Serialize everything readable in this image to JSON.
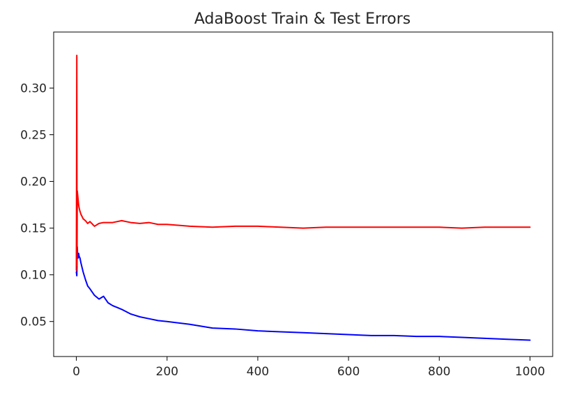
{
  "chart_data": {
    "type": "line",
    "title": "AdaBoost Train & Test Errors",
    "xlabel": "",
    "ylabel": "",
    "xlim": [
      -50,
      1050
    ],
    "ylim": [
      0.0125,
      0.36
    ],
    "x_ticks": [
      0,
      200,
      400,
      600,
      800,
      1000
    ],
    "x_tick_labels": [
      "0",
      "200",
      "400",
      "600",
      "800",
      "1000"
    ],
    "y_ticks": [
      0.05,
      0.1,
      0.15,
      0.2,
      0.25,
      0.3
    ],
    "y_tick_labels": [
      "0.05",
      "0.10",
      "0.15",
      "0.20",
      "0.25",
      "0.30"
    ],
    "grid": false,
    "legend": "none",
    "series": [
      {
        "color": "#0000ff",
        "x": [
          0,
          1,
          2,
          3,
          4,
          5,
          6,
          8,
          10,
          15,
          20,
          25,
          30,
          40,
          50,
          60,
          70,
          80,
          90,
          100,
          120,
          140,
          160,
          180,
          200,
          250,
          300,
          350,
          400,
          450,
          500,
          550,
          600,
          650,
          700,
          750,
          800,
          850,
          900,
          950,
          1000
        ],
        "y": [
          0.103,
          0.099,
          0.13,
          0.12,
          0.118,
          0.123,
          0.12,
          0.118,
          0.113,
          0.103,
          0.095,
          0.088,
          0.085,
          0.078,
          0.074,
          0.077,
          0.07,
          0.067,
          0.065,
          0.063,
          0.058,
          0.055,
          0.053,
          0.051,
          0.05,
          0.047,
          0.043,
          0.042,
          0.04,
          0.039,
          0.038,
          0.037,
          0.036,
          0.035,
          0.035,
          0.034,
          0.034,
          0.033,
          0.032,
          0.031,
          0.03
        ]
      },
      {
        "color": "#ff0000",
        "x": [
          0,
          1,
          1.5,
          2,
          3,
          4,
          5,
          6,
          8,
          10,
          15,
          20,
          25,
          30,
          40,
          50,
          60,
          80,
          100,
          120,
          140,
          160,
          180,
          200,
          250,
          300,
          350,
          400,
          450,
          500,
          550,
          600,
          650,
          700,
          750,
          800,
          850,
          900,
          950,
          1000
        ],
        "y": [
          0.105,
          0.335,
          0.11,
          0.19,
          0.185,
          0.18,
          0.175,
          0.172,
          0.168,
          0.165,
          0.16,
          0.158,
          0.155,
          0.157,
          0.152,
          0.155,
          0.156,
          0.156,
          0.158,
          0.156,
          0.155,
          0.156,
          0.154,
          0.154,
          0.152,
          0.151,
          0.152,
          0.152,
          0.151,
          0.15,
          0.151,
          0.151,
          0.151,
          0.151,
          0.151,
          0.151,
          0.15,
          0.151,
          0.151,
          0.151
        ]
      }
    ]
  }
}
